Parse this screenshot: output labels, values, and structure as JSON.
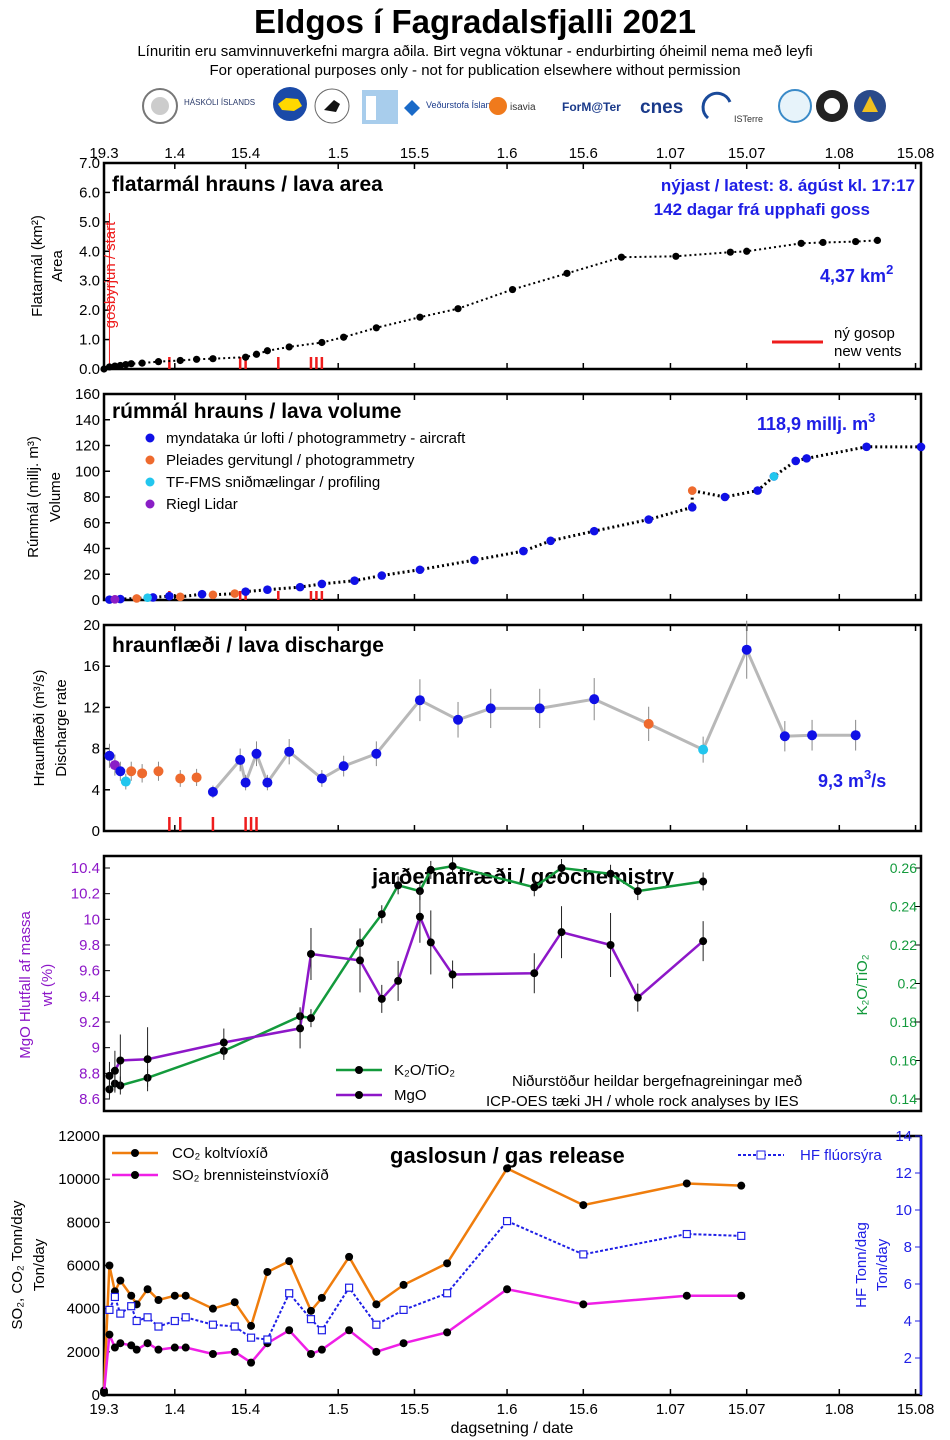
{
  "header": {
    "title": "Eldgos í Fagradalsfjalli 2021",
    "subtitle_is": "Línuritin eru samvinnuverkefni margra aðila.  Birt vegna vöktunar - endurbirting óheimil nema með leyfi",
    "subtitle_en": "For operational purposes only - not for publication elsewhere without permission",
    "logos": [
      "HÁSKÓLI ÍSLANDS",
      "Veðurstofa Íslands",
      "isavia",
      "ForM@Ter",
      "cnes",
      "ISTerre"
    ]
  },
  "colors": {
    "black_series": "#000000",
    "blue_points": "#1010e6",
    "pleiades": "#ee6a2e",
    "tf_fms": "#22c6ee",
    "riegl": "#8a1ec6",
    "vents": "#ee1c1c",
    "k2o_tio2": "#139a3c",
    "mgo": "#8d17c8",
    "co2": "#ef7d0d",
    "so2": "#ef1fe6",
    "hf": "#1f1fe6",
    "label_blue": "#1e1ee6"
  },
  "x_axis": {
    "ticks": [
      "19.3",
      "1.4",
      "15.4",
      "1.5",
      "15.5",
      "1.6",
      "15.6",
      "1.07",
      "15.07",
      "1.08",
      "15.08"
    ],
    "xlabel": "dagsetning / date"
  },
  "chart_data": [
    {
      "type": "line",
      "title": "flatarmál hrauns / lava area",
      "ylabel": "Flatarmál (km²)",
      "ylabel2": "Area",
      "ylim": [
        0,
        7
      ],
      "yticks": [
        "0.0",
        "1.0",
        "2.0",
        "3.0",
        "4.0",
        "5.0",
        "6.0",
        "7.0"
      ],
      "latest_label": "nýjast / latest: 8. ágúst kl. 17:17",
      "days_label": "142 dagar frá upphafi goss",
      "current_value_label": "4,37 km",
      "current_value_sup": "2",
      "start_label": "gosbyrjun / start",
      "vents_legend": [
        "ný gosop",
        "new vents"
      ],
      "vent_days": [
        12,
        25,
        26,
        32,
        38,
        39,
        40
      ],
      "x": [
        0,
        1,
        2,
        3,
        4,
        5,
        7,
        10,
        14,
        17,
        20,
        26,
        28,
        30,
        34,
        40,
        44,
        50,
        58,
        65,
        75,
        85,
        95,
        105,
        115,
        118,
        128,
        132,
        138,
        142
      ],
      "y": [
        0.0,
        0.07,
        0.1,
        0.12,
        0.15,
        0.18,
        0.2,
        0.25,
        0.29,
        0.33,
        0.35,
        0.4,
        0.5,
        0.62,
        0.75,
        0.9,
        1.08,
        1.4,
        1.76,
        2.05,
        2.7,
        3.25,
        3.8,
        3.83,
        3.97,
        4.0,
        4.27,
        4.3,
        4.33,
        4.37
      ]
    },
    {
      "type": "scatter",
      "title": "rúmmál hrauns / lava volume",
      "ylabel": "Rúmmál (millj. m³)",
      "ylabel2": "Volume",
      "ylim": [
        0,
        160
      ],
      "yticks": [
        "0",
        "20",
        "40",
        "60",
        "80",
        "100",
        "120",
        "140",
        "160"
      ],
      "current_value_label": "118,9 millj. m",
      "current_value_sup": "3",
      "series": [
        {
          "name": "myndataka úr lofti  /  photogrammetry - aircraft",
          "x": [
            1,
            3,
            9,
            12,
            18,
            26,
            30,
            36,
            40,
            46,
            51,
            58,
            68,
            77,
            82,
            90,
            100,
            108,
            114,
            120,
            123,
            127,
            129,
            140,
            150
          ],
          "y": [
            0.3,
            0.7,
            2,
            3,
            4.5,
            6.5,
            8,
            10,
            12.5,
            15,
            19,
            23.5,
            31,
            38,
            46,
            53.5,
            62.5,
            72,
            80,
            85,
            96,
            108,
            110,
            119,
            118.9
          ]
        },
        {
          "name": "Pleiades gervitungl  /  photogrammetry",
          "x": [
            2,
            6,
            14,
            20,
            24,
            108
          ],
          "y": [
            0.5,
            1.2,
            2.5,
            4,
            5,
            85
          ]
        },
        {
          "name": "TF-FMS sniðmælingar  /  profiling",
          "x": [
            8,
            123
          ],
          "y": [
            1.8,
            96
          ]
        },
        {
          "name": "Riegl Lidar",
          "x": [
            2
          ],
          "y": [
            0.5
          ]
        }
      ]
    },
    {
      "type": "scatter",
      "title": "hraunflæði / lava discharge",
      "ylabel": "Hraunflæði (m³/s)",
      "ylabel2": "Discharge rate",
      "ylim": [
        0,
        20
      ],
      "yticks": [
        "0",
        "4",
        "8",
        "12",
        "16",
        "20"
      ],
      "current_value_label": "9,3 m",
      "current_value_sup": "3",
      "current_value_suffix": "/s",
      "x": [
        1,
        2,
        3,
        4,
        5,
        7,
        10,
        14,
        17,
        20,
        25,
        26,
        28,
        30,
        34,
        40,
        44,
        50,
        58,
        65,
        71,
        80,
        90,
        100,
        110,
        118,
        125,
        130,
        138
      ],
      "y": [
        7.3,
        6.4,
        5.8,
        4.8,
        5.8,
        5.6,
        5.8,
        5.1,
        5.2,
        3.8,
        6.9,
        4.7,
        7.5,
        4.7,
        7.7,
        5.1,
        6.3,
        7.5,
        12.7,
        10.8,
        11.9,
        11.9,
        12.8,
        10.4,
        7.9,
        17.6,
        9.2,
        9.3,
        9.3
      ],
      "series_types": [
        "blue",
        "riegl",
        "blue",
        "tf",
        "orange",
        "orange",
        "orange",
        "orange",
        "orange",
        "blue",
        "blue",
        "blue",
        "blue",
        "blue",
        "blue",
        "blue",
        "blue",
        "blue",
        "blue",
        "blue",
        "blue",
        "blue",
        "blue",
        "orange",
        "tf",
        "blue",
        "blue",
        "blue",
        "blue"
      ]
    },
    {
      "type": "line",
      "title": "jarðefnafræði / geochemistry",
      "ylabel": "MgO Hlutfall af massa",
      "ylabel2": "wt (%)",
      "ylabel_right": "K₂O/TiO₂",
      "ylim": [
        8.6,
        10.4
      ],
      "yticks": [
        "8.6",
        "8.8",
        "9",
        "9.2",
        "9.4",
        "9.6",
        "9.8",
        "10",
        "10.2",
        "10.4"
      ],
      "ylim_right": [
        0.14,
        0.26
      ],
      "yticks_right": [
        "0.14",
        "0.16",
        "0.18",
        "0.2",
        "0.22",
        "0.24",
        "0.26"
      ],
      "note1": "Niðurstöður heildar bergefnagreiningar með",
      "note2": "ICP-OES tæki JH / whole rock analyses by IES",
      "series": [
        {
          "name": "K₂O/TiO₂",
          "x": [
            1,
            2,
            3,
            8,
            22,
            36,
            38,
            47,
            51,
            54,
            58,
            60,
            64,
            79,
            84,
            93,
            98,
            110
          ],
          "y": [
            0.145,
            0.148,
            0.147,
            0.151,
            0.165,
            0.183,
            0.182,
            0.221,
            0.236,
            0.251,
            0.248,
            0.259,
            0.261,
            0.25,
            0.26,
            0.257,
            0.248,
            0.253
          ]
        },
        {
          "name": "MgO",
          "x": [
            1,
            2,
            3,
            8,
            22,
            36,
            38,
            47,
            51,
            54,
            58,
            60,
            64,
            79,
            84,
            93,
            98,
            110
          ],
          "y": [
            8.78,
            8.82,
            8.9,
            8.91,
            9.04,
            9.15,
            9.73,
            9.68,
            9.38,
            9.52,
            10.02,
            9.82,
            9.57,
            9.58,
            9.9,
            9.8,
            9.39,
            9.83
          ]
        }
      ]
    },
    {
      "type": "line",
      "title": "gaslosun / gas release",
      "ylabel": "SO₂, CO₂ Tonn/day",
      "ylabel2": "Ton/day",
      "ylabel_right": "HF Tonn/dag",
      "ylabel_right2": "Ton/day",
      "ylim": [
        0,
        12000
      ],
      "yticks": [
        "0",
        "2000",
        "4000",
        "6000",
        "8000",
        "10000",
        "12000"
      ],
      "ylim_right": [
        0,
        14
      ],
      "yticks_right": [
        "2",
        "4",
        "6",
        "8",
        "10",
        "12",
        "14"
      ],
      "series": [
        {
          "name": "CO₂ koltvíoxíð",
          "x": [
            0,
            1,
            2,
            3,
            5,
            6,
            8,
            10,
            13,
            15,
            20,
            24,
            27,
            30,
            34,
            38,
            40,
            45,
            50,
            55,
            63,
            74,
            88,
            107,
            117
          ],
          "y": [
            200,
            6000,
            4800,
            5300,
            4600,
            4200,
            4900,
            4400,
            4600,
            4600,
            4000,
            4300,
            3200,
            5700,
            6200,
            3900,
            4500,
            6400,
            4200,
            5100,
            6100,
            10500,
            8800,
            9800,
            9700
          ]
        },
        {
          "name": "SO₂ brennisteinstvíoxíð",
          "x": [
            0,
            1,
            2,
            3,
            5,
            6,
            8,
            10,
            13,
            15,
            20,
            24,
            27,
            30,
            34,
            38,
            40,
            45,
            50,
            55,
            63,
            74,
            88,
            107,
            117
          ],
          "y": [
            100,
            2800,
            2200,
            2400,
            2300,
            2100,
            2400,
            2100,
            2200,
            2200,
            1900,
            2000,
            1500,
            2400,
            3000,
            1900,
            2100,
            3000,
            2000,
            2400,
            2900,
            4900,
            4200,
            4600,
            4600
          ]
        },
        {
          "name": "HF flúorsýra",
          "x": [
            1,
            2,
            3,
            5,
            6,
            8,
            10,
            13,
            15,
            20,
            24,
            27,
            30,
            34,
            38,
            40,
            45,
            50,
            55,
            63,
            74,
            88,
            107,
            117
          ],
          "y": [
            4.6,
            5.3,
            4.4,
            4.8,
            4.0,
            4.2,
            3.7,
            4.0,
            4.2,
            3.8,
            3.7,
            3.1,
            3.0,
            5.5,
            4.1,
            3.5,
            5.8,
            3.8,
            4.6,
            5.5,
            9.4,
            7.6,
            8.7,
            8.6
          ]
        }
      ]
    }
  ]
}
